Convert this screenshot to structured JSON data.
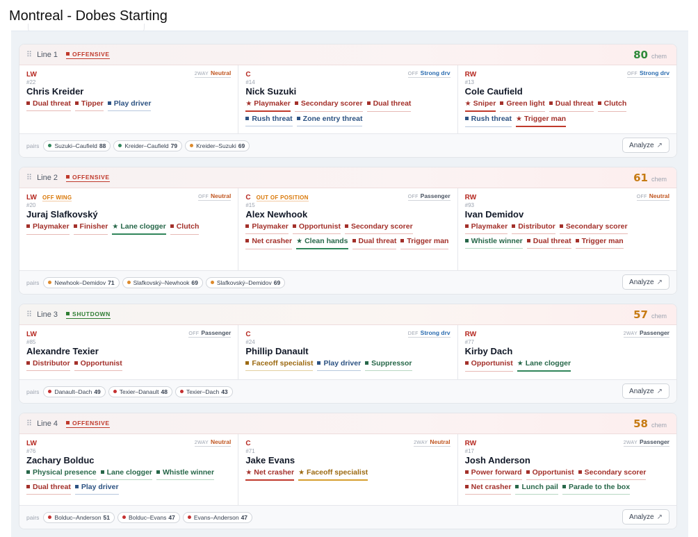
{
  "page": {
    "title": "Montreal - Dobes Starting"
  },
  "labels": {
    "chem": "chem",
    "pairs": "pairs",
    "analyze": "Analyze"
  },
  "colors": {
    "offensive": "#c0392b",
    "shutdown": "#2e7d32",
    "chem_high": "#2f8a3a",
    "chem_mid": "#c67a12"
  },
  "lines": [
    {
      "name": "Line 1",
      "role": "OFFENSIVE",
      "role_type": "offensive",
      "chem": "80",
      "chem_level": "high",
      "slots": [
        {
          "pos": "LW",
          "flag": "",
          "fit_tag": "2WAY",
          "fit": "Neutral",
          "fit_type": "neutral",
          "num": "#22",
          "player": "Chris Kreider",
          "tags": [
            {
              "text": "Dual threat",
              "c": "red",
              "s": false
            },
            {
              "text": "Tipper",
              "c": "red",
              "s": false
            },
            {
              "text": "Play driver",
              "c": "blue",
              "s": false
            }
          ]
        },
        {
          "pos": "C",
          "flag": "",
          "fit_tag": "OFF",
          "fit": "Strong drv",
          "fit_type": "strong",
          "num": "#14",
          "player": "Nick Suzuki",
          "tags": [
            {
              "text": "Playmaker",
              "c": "red",
              "s": true
            },
            {
              "text": "Secondary scorer",
              "c": "red",
              "s": false
            },
            {
              "text": "Dual threat",
              "c": "red",
              "s": false
            },
            {
              "text": "Rush threat",
              "c": "blue",
              "s": false
            },
            {
              "text": "Zone entry threat",
              "c": "blue",
              "s": false
            }
          ]
        },
        {
          "pos": "RW",
          "flag": "",
          "fit_tag": "OFF",
          "fit": "Strong drv",
          "fit_type": "strong",
          "num": "#13",
          "player": "Cole Caufield",
          "tags": [
            {
              "text": "Sniper",
              "c": "red",
              "s": true
            },
            {
              "text": "Green light",
              "c": "red",
              "s": false
            },
            {
              "text": "Dual threat",
              "c": "red",
              "s": false
            },
            {
              "text": "Clutch",
              "c": "red",
              "s": false
            },
            {
              "text": "Rush threat",
              "c": "blue",
              "s": false
            },
            {
              "text": "Trigger man",
              "c": "red",
              "s": true
            }
          ]
        }
      ],
      "pairs": [
        {
          "name": "Suzuki–Caufield",
          "val": "88",
          "dot": "#2f855a"
        },
        {
          "name": "Kreider–Caufield",
          "val": "79",
          "dot": "#2f855a"
        },
        {
          "name": "Kreider–Suzuki",
          "val": "69",
          "dot": "#dd8a2c"
        }
      ]
    },
    {
      "name": "Line 2",
      "role": "OFFENSIVE",
      "role_type": "offensive",
      "chem": "61",
      "chem_level": "mid",
      "slots": [
        {
          "pos": "LW",
          "flag": "OFF WING",
          "fit_tag": "OFF",
          "fit": "Neutral",
          "fit_type": "neutral",
          "num": "#20",
          "player": "Juraj Slafkovský",
          "tags": [
            {
              "text": "Playmaker",
              "c": "red",
              "s": false
            },
            {
              "text": "Finisher",
              "c": "red",
              "s": false
            },
            {
              "text": "Lane clogger",
              "c": "green",
              "s": true
            },
            {
              "text": "Clutch",
              "c": "red",
              "s": false
            }
          ]
        },
        {
          "pos": "C",
          "flag": "OUT OF POSITION",
          "fit_tag": "OFF",
          "fit": "Passenger",
          "fit_type": "pass",
          "num": "#15",
          "player": "Alex Newhook",
          "tags": [
            {
              "text": "Playmaker",
              "c": "red",
              "s": false
            },
            {
              "text": "Opportunist",
              "c": "red",
              "s": false
            },
            {
              "text": "Secondary scorer",
              "c": "red",
              "s": false
            },
            {
              "text": "Net crasher",
              "c": "red",
              "s": false
            },
            {
              "text": "Clean hands",
              "c": "green",
              "s": true
            },
            {
              "text": "Dual threat",
              "c": "red",
              "s": false
            },
            {
              "text": "Trigger man",
              "c": "red",
              "s": false
            }
          ]
        },
        {
          "pos": "RW",
          "flag": "",
          "fit_tag": "OFF",
          "fit": "Neutral",
          "fit_type": "neutral",
          "num": "#93",
          "player": "Ivan Demidov",
          "tags": [
            {
              "text": "Playmaker",
              "c": "red",
              "s": false
            },
            {
              "text": "Distributor",
              "c": "red",
              "s": false
            },
            {
              "text": "Secondary scorer",
              "c": "red",
              "s": false
            },
            {
              "text": "Whistle winner",
              "c": "green",
              "s": false
            },
            {
              "text": "Dual threat",
              "c": "red",
              "s": false
            },
            {
              "text": "Trigger man",
              "c": "red",
              "s": false
            }
          ]
        }
      ],
      "pairs": [
        {
          "name": "Newhook–Demidov",
          "val": "71",
          "dot": "#dd8a2c"
        },
        {
          "name": "Slafkovský–Newhook",
          "val": "69",
          "dot": "#dd8a2c"
        },
        {
          "name": "Slafkovský–Demidov",
          "val": "69",
          "dot": "#dd8a2c"
        }
      ]
    },
    {
      "name": "Line 3",
      "role": "SHUTDOWN",
      "role_type": "shutdown",
      "chem": "57",
      "chem_level": "mid",
      "slots": [
        {
          "pos": "LW",
          "flag": "",
          "fit_tag": "OFF",
          "fit": "Passenger",
          "fit_type": "pass",
          "num": "#85",
          "player": "Alexandre Texier",
          "tags": [
            {
              "text": "Distributor",
              "c": "red",
              "s": false
            },
            {
              "text": "Opportunist",
              "c": "red",
              "s": false
            }
          ]
        },
        {
          "pos": "C",
          "flag": "",
          "fit_tag": "DEF",
          "fit": "Strong drv",
          "fit_type": "strong",
          "num": "#24",
          "player": "Phillip Danault",
          "tags": [
            {
              "text": "Faceoff specialist",
              "c": "gold",
              "s": false
            },
            {
              "text": "Play driver",
              "c": "blue",
              "s": false
            },
            {
              "text": "Suppressor",
              "c": "green",
              "s": false
            }
          ]
        },
        {
          "pos": "RW",
          "flag": "",
          "fit_tag": "2WAY",
          "fit": "Passenger",
          "fit_type": "pass",
          "num": "#77",
          "player": "Kirby Dach",
          "tags": [
            {
              "text": "Opportunist",
              "c": "red",
              "s": false
            },
            {
              "text": "Lane clogger",
              "c": "green",
              "s": true
            }
          ]
        }
      ],
      "pairs": [
        {
          "name": "Danault–Dach",
          "val": "49",
          "dot": "#c53030"
        },
        {
          "name": "Texier–Danault",
          "val": "48",
          "dot": "#c53030"
        },
        {
          "name": "Texier–Dach",
          "val": "43",
          "dot": "#c53030"
        }
      ]
    },
    {
      "name": "Line 4",
      "role": "OFFENSIVE",
      "role_type": "offensive",
      "chem": "58",
      "chem_level": "mid",
      "slots": [
        {
          "pos": "LW",
          "flag": "",
          "fit_tag": "2WAY",
          "fit": "Neutral",
          "fit_type": "neutral",
          "num": "#76",
          "player": "Zachary Bolduc",
          "tags": [
            {
              "text": "Physical presence",
              "c": "green",
              "s": false
            },
            {
              "text": "Lane clogger",
              "c": "green",
              "s": false
            },
            {
              "text": "Whistle winner",
              "c": "green",
              "s": false
            },
            {
              "text": "Dual threat",
              "c": "red",
              "s": false
            },
            {
              "text": "Play driver",
              "c": "blue",
              "s": false
            }
          ]
        },
        {
          "pos": "C",
          "flag": "",
          "fit_tag": "2WAY",
          "fit": "Neutral",
          "fit_type": "neutral",
          "num": "#71",
          "player": "Jake Evans",
          "tags": [
            {
              "text": "Net crasher",
              "c": "red",
              "s": true
            },
            {
              "text": "Faceoff specialist",
              "c": "gold",
              "s": true
            }
          ]
        },
        {
          "pos": "RW",
          "flag": "",
          "fit_tag": "2WAY",
          "fit": "Passenger",
          "fit_type": "pass",
          "num": "#17",
          "player": "Josh Anderson",
          "tags": [
            {
              "text": "Power forward",
              "c": "red",
              "s": false
            },
            {
              "text": "Opportunist",
              "c": "red",
              "s": false
            },
            {
              "text": "Secondary scorer",
              "c": "red",
              "s": false
            },
            {
              "text": "Net crasher",
              "c": "red",
              "s": false
            },
            {
              "text": "Lunch pail",
              "c": "green",
              "s": false
            },
            {
              "text": "Parade to the box",
              "c": "green",
              "s": false
            }
          ]
        }
      ],
      "pairs": [
        {
          "name": "Bolduc–Anderson",
          "val": "51",
          "dot": "#c53030"
        },
        {
          "name": "Bolduc–Evans",
          "val": "47",
          "dot": "#c53030"
        },
        {
          "name": "Evans–Anderson",
          "val": "47",
          "dot": "#c53030"
        }
      ]
    }
  ]
}
